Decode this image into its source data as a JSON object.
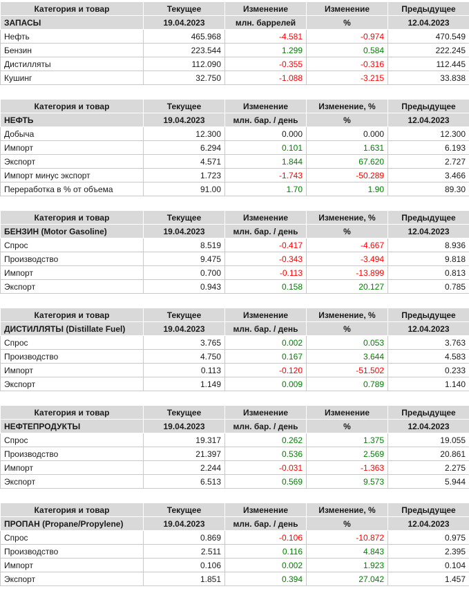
{
  "colors": {
    "negative": "#ff0000",
    "positive": "#008000",
    "header_bg": "#d9d9d9",
    "border": "#c9c9c9",
    "text": "#1a1a1a"
  },
  "chart_data": [
    {
      "type": "table",
      "id": "zapasy",
      "columns": [
        "Категория и товар",
        "Текущее",
        "Изменение",
        "Изменение",
        "Предыдущее"
      ],
      "subheader": [
        "ЗАПАСЫ",
        "19.04.2023",
        "млн. баррелей",
        "%",
        "12.04.2023"
      ],
      "rows": [
        [
          "Нефть",
          "465.968",
          "-4.581",
          "-0.974",
          "470.549"
        ],
        [
          "Бензин",
          "223.544",
          "1.299",
          "0.584",
          "222.245"
        ],
        [
          "Дистилляты",
          "112.090",
          "-0.355",
          "-0.316",
          "112.445"
        ],
        [
          "Кушинг",
          "32.750",
          "-1.088",
          "-3.215",
          "33.838"
        ]
      ]
    },
    {
      "type": "table",
      "id": "neft",
      "columns": [
        "Категория и товар",
        "Текущее",
        "Изменение",
        "Изменение, %",
        "Предыдущее"
      ],
      "subheader": [
        "НЕФТЬ",
        "19.04.2023",
        "млн. бар. / день",
        "%",
        "12.04.2023"
      ],
      "rows": [
        [
          "Добыча",
          "12.300",
          "0.000",
          "0.000",
          "12.300"
        ],
        [
          "Импорт",
          "6.294",
          "0.101",
          "1.631",
          "6.193"
        ],
        [
          "Экспорт",
          "4.571",
          "1.844",
          "67.620",
          "2.727"
        ],
        [
          "Импорт минус экспорт",
          "1.723",
          "-1.743",
          "-50.289",
          "3.466"
        ],
        [
          "Переработка в % от объема",
          "91.00",
          "1.70",
          "1.90",
          "89.30"
        ]
      ]
    },
    {
      "type": "table",
      "id": "benzin",
      "columns": [
        "Категория и товар",
        "Текущее",
        "Изменение",
        "Изменение, %",
        "Предыдущее"
      ],
      "subheader": [
        "БЕНЗИН (Motor Gasoline)",
        "19.04.2023",
        "млн. бар. / день",
        "%",
        "12.04.2023"
      ],
      "rows": [
        [
          "Спрос",
          "8.519",
          "-0.417",
          "-4.667",
          "8.936"
        ],
        [
          "Производство",
          "9.475",
          "-0.343",
          "-3.494",
          "9.818"
        ],
        [
          "Импорт",
          "0.700",
          "-0.113",
          "-13.899",
          "0.813"
        ],
        [
          "Экспорт",
          "0.943",
          "0.158",
          "20.127",
          "0.785"
        ]
      ]
    },
    {
      "type": "table",
      "id": "distillyaty",
      "columns": [
        "Категория и товар",
        "Текущее",
        "Изменение",
        "Изменение, %",
        "Предыдущее"
      ],
      "subheader": [
        "ДИСТИЛЛЯТЫ (Distillate Fuel)",
        "19.04.2023",
        "млн. бар. / день",
        "%",
        "12.04.2023"
      ],
      "rows": [
        [
          "Спрос",
          "3.765",
          "0.002",
          "0.053",
          "3.763"
        ],
        [
          "Производство",
          "4.750",
          "0.167",
          "3.644",
          "4.583"
        ],
        [
          "Импорт",
          "0.113",
          "-0.120",
          "-51.502",
          "0.233"
        ],
        [
          "Экспорт",
          "1.149",
          "0.009",
          "0.789",
          "1.140"
        ]
      ]
    },
    {
      "type": "table",
      "id": "nefteprodukty",
      "columns": [
        "Категория и товар",
        "Текущее",
        "Изменение",
        "Изменение",
        "Предыдущее"
      ],
      "subheader": [
        "НЕФТЕПРОДУКТЫ",
        "19.04.2023",
        "млн. бар. / день",
        "%",
        "12.04.2023"
      ],
      "rows": [
        [
          "Спрос",
          "19.317",
          "0.262",
          "1.375",
          "19.055"
        ],
        [
          "Производство",
          "21.397",
          "0.536",
          "2.569",
          "20.861"
        ],
        [
          "Импорт",
          "2.244",
          "-0.031",
          "-1.363",
          "2.275"
        ],
        [
          "Экспорт",
          "6.513",
          "0.569",
          "9.573",
          "5.944"
        ]
      ]
    },
    {
      "type": "table",
      "id": "propan",
      "columns": [
        "Категория и товар",
        "Текущее",
        "Изменение",
        "Изменение, %",
        "Предыдущее"
      ],
      "subheader": [
        "ПРОПАН (Propane/Propylene)",
        "19.04.2023",
        "млн. бар. / день",
        "%",
        "12.04.2023"
      ],
      "rows": [
        [
          "Спрос",
          "0.869",
          "-0.106",
          "-10.872",
          "0.975"
        ],
        [
          "Производство",
          "2.511",
          "0.116",
          "4.843",
          "2.395"
        ],
        [
          "Импорт",
          "0.106",
          "0.002",
          "1.923",
          "0.104"
        ],
        [
          "Экспорт",
          "1.851",
          "0.394",
          "27.042",
          "1.457"
        ]
      ]
    }
  ]
}
